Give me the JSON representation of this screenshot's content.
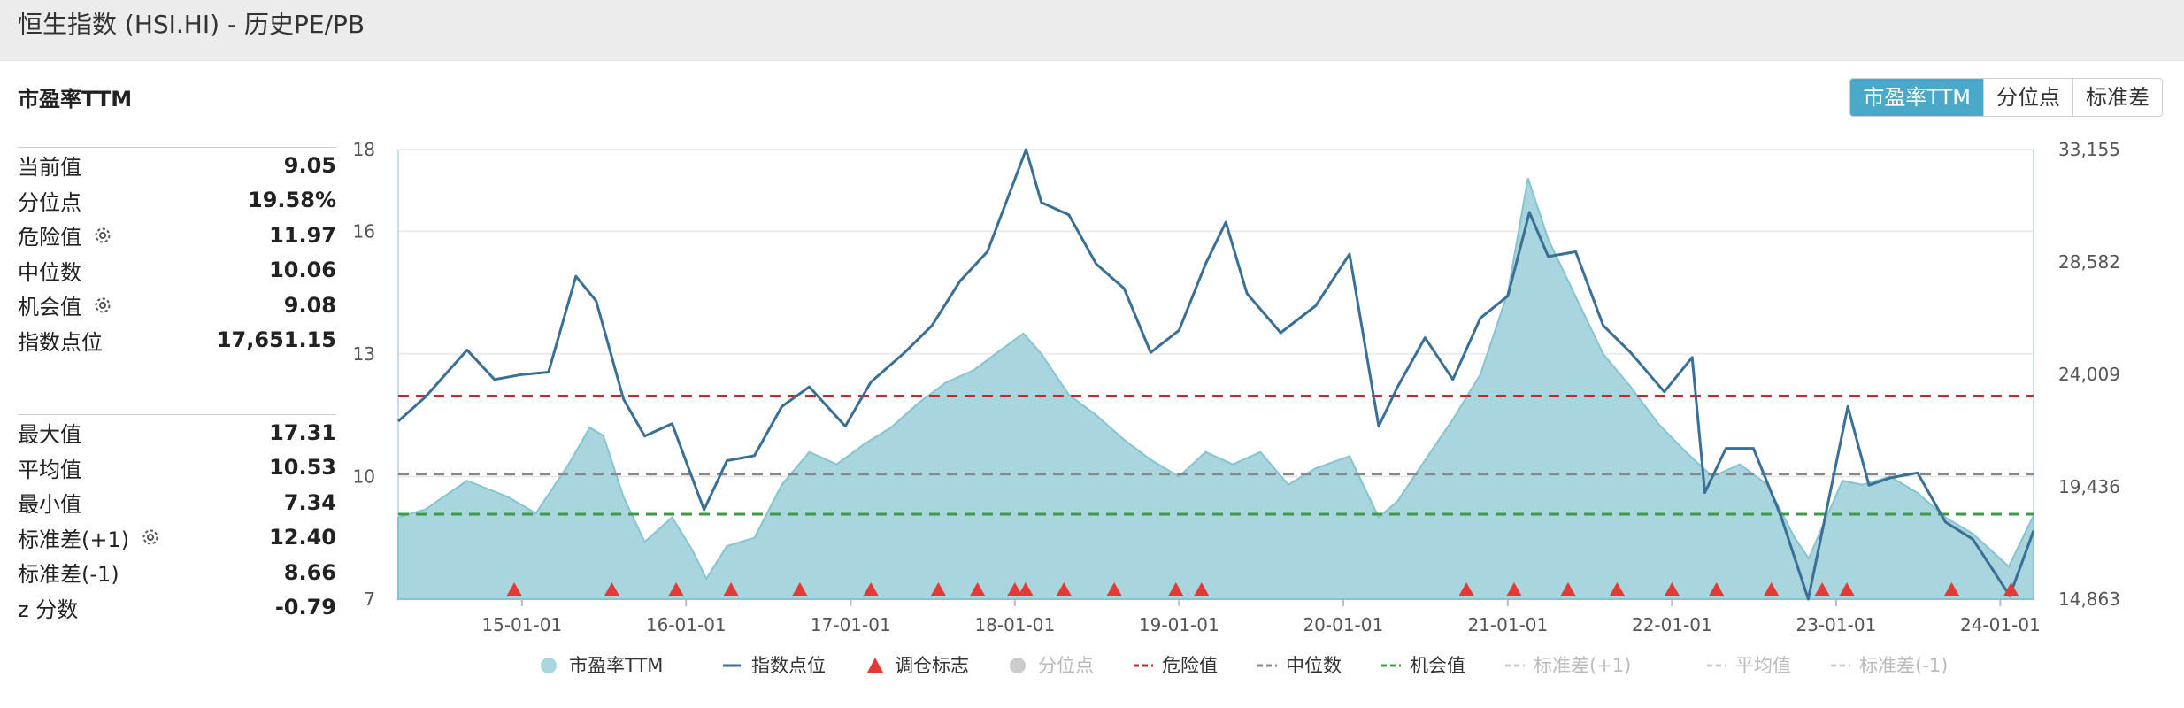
{
  "header": {
    "title": "恒生指数 (HSI.HI) - 历史PE/PB"
  },
  "metric_title": "市盈率TTM",
  "tabs": [
    {
      "label": "市盈率TTM",
      "active": true
    },
    {
      "label": "分位点",
      "active": false
    },
    {
      "label": "标准差",
      "active": false
    }
  ],
  "stats_top": [
    {
      "label": "当前值",
      "value": "9.05",
      "gear": false
    },
    {
      "label": "分位点",
      "value": "19.58%",
      "gear": false
    },
    {
      "label": "危险值",
      "value": "11.97",
      "gear": true
    },
    {
      "label": "中位数",
      "value": "10.06",
      "gear": false
    },
    {
      "label": "机会值",
      "value": "9.08",
      "gear": true
    },
    {
      "label": "指数点位",
      "value": "17,651.15",
      "gear": false
    }
  ],
  "stats_bottom": [
    {
      "label": "最大值",
      "value": "17.31",
      "gear": false
    },
    {
      "label": "平均值",
      "value": "10.53",
      "gear": false
    },
    {
      "label": "最小值",
      "value": "7.34",
      "gear": false
    },
    {
      "label": "标准差(+1)",
      "value": "12.40",
      "gear": true
    },
    {
      "label": "标准差(-1)",
      "value": "8.66",
      "gear": false
    },
    {
      "label": "z 分数",
      "value": "-0.79",
      "gear": false
    }
  ],
  "chart_data": {
    "type": "area",
    "x_start": "2014-04-01",
    "x_end": "2024-03-15",
    "x_ticks": [
      "15-01-01",
      "16-01-01",
      "17-01-01",
      "18-01-01",
      "19-01-01",
      "20-01-01",
      "21-01-01",
      "22-01-01",
      "23-01-01",
      "24-01-01"
    ],
    "y_left": {
      "ticks": [
        7,
        10,
        13,
        16,
        18
      ],
      "range": [
        7,
        18
      ]
    },
    "y_right": {
      "ticks": [
        "14,863",
        "19,436",
        "24,009",
        "28,582",
        "33,155"
      ],
      "range": [
        14863,
        33155
      ]
    },
    "colors": {
      "pe_fill": "#a8d5de",
      "pe_stroke": "#86c4d0",
      "index_line": "#3a6f96",
      "danger": "#c62828",
      "median": "#888888",
      "opportunity": "#3d9a47",
      "marker": "#e53935"
    },
    "reference_lines": [
      {
        "name": "危险值",
        "value": 11.97
      },
      {
        "name": "中位数",
        "value": 10.06
      },
      {
        "name": "机会值",
        "value": 9.08
      }
    ],
    "series": [
      {
        "name": "市盈率TTM",
        "points": [
          [
            "2014-04-01",
            9.0
          ],
          [
            "2014-06-01",
            9.2
          ],
          [
            "2014-09-01",
            9.9
          ],
          [
            "2014-12-01",
            9.5
          ],
          [
            "2015-02-01",
            9.1
          ],
          [
            "2015-04-15",
            10.3
          ],
          [
            "2015-06-01",
            11.2
          ],
          [
            "2015-07-01",
            11.0
          ],
          [
            "2015-08-15",
            9.5
          ],
          [
            "2015-10-01",
            8.4
          ],
          [
            "2015-12-01",
            9.0
          ],
          [
            "2016-01-15",
            8.2
          ],
          [
            "2016-02-15",
            7.5
          ],
          [
            "2016-04-01",
            8.3
          ],
          [
            "2016-06-01",
            8.5
          ],
          [
            "2016-08-01",
            9.8
          ],
          [
            "2016-10-01",
            10.6
          ],
          [
            "2016-12-01",
            10.3
          ],
          [
            "2017-02-01",
            10.8
          ],
          [
            "2017-04-01",
            11.2
          ],
          [
            "2017-06-01",
            11.8
          ],
          [
            "2017-08-01",
            12.3
          ],
          [
            "2017-10-01",
            12.6
          ],
          [
            "2017-12-01",
            13.1
          ],
          [
            "2018-01-20",
            13.5
          ],
          [
            "2018-03-01",
            13.0
          ],
          [
            "2018-05-01",
            12.0
          ],
          [
            "2018-07-01",
            11.5
          ],
          [
            "2018-09-01",
            10.9
          ],
          [
            "2018-11-01",
            10.4
          ],
          [
            "2019-01-01",
            10.0
          ],
          [
            "2019-03-01",
            10.6
          ],
          [
            "2019-05-01",
            10.3
          ],
          [
            "2019-07-01",
            10.6
          ],
          [
            "2019-09-01",
            9.8
          ],
          [
            "2019-11-01",
            10.2
          ],
          [
            "2020-01-15",
            10.5
          ],
          [
            "2020-03-20",
            9.0
          ],
          [
            "2020-05-01",
            9.4
          ],
          [
            "2020-07-01",
            10.4
          ],
          [
            "2020-09-01",
            11.4
          ],
          [
            "2020-11-01",
            12.5
          ],
          [
            "2021-01-01",
            14.5
          ],
          [
            "2021-02-15",
            17.3
          ],
          [
            "2021-04-01",
            15.8
          ],
          [
            "2021-06-01",
            14.4
          ],
          [
            "2021-08-01",
            13.0
          ],
          [
            "2021-10-01",
            12.2
          ],
          [
            "2021-12-01",
            11.3
          ],
          [
            "2022-02-01",
            10.6
          ],
          [
            "2022-04-01",
            10.0
          ],
          [
            "2022-06-01",
            10.3
          ],
          [
            "2022-08-01",
            9.8
          ],
          [
            "2022-10-01",
            8.5
          ],
          [
            "2022-11-01",
            8.0
          ],
          [
            "2023-01-15",
            9.9
          ],
          [
            "2023-03-01",
            9.8
          ],
          [
            "2023-05-01",
            10.0
          ],
          [
            "2023-07-01",
            9.6
          ],
          [
            "2023-09-01",
            9.0
          ],
          [
            "2023-11-01",
            8.6
          ],
          [
            "2024-01-20",
            7.8
          ],
          [
            "2024-03-15",
            9.05
          ]
        ]
      },
      {
        "name": "指数点位",
        "points": [
          [
            "2014-04-01",
            22100
          ],
          [
            "2014-06-01",
            23100
          ],
          [
            "2014-09-01",
            25000
          ],
          [
            "2014-11-01",
            23800
          ],
          [
            "2015-01-01",
            24000
          ],
          [
            "2015-03-01",
            24100
          ],
          [
            "2015-05-01",
            28000
          ],
          [
            "2015-06-15",
            27000
          ],
          [
            "2015-08-15",
            23000
          ],
          [
            "2015-10-01",
            21500
          ],
          [
            "2015-12-01",
            22000
          ],
          [
            "2016-02-10",
            18500
          ],
          [
            "2016-04-01",
            20500
          ],
          [
            "2016-06-01",
            20700
          ],
          [
            "2016-08-01",
            22700
          ],
          [
            "2016-10-01",
            23500
          ],
          [
            "2016-12-20",
            21900
          ],
          [
            "2017-02-15",
            23700
          ],
          [
            "2017-05-01",
            24900
          ],
          [
            "2017-07-01",
            26000
          ],
          [
            "2017-09-01",
            27800
          ],
          [
            "2017-11-01",
            29000
          ],
          [
            "2018-01-26",
            33155
          ],
          [
            "2018-03-01",
            31000
          ],
          [
            "2018-05-01",
            30500
          ],
          [
            "2018-07-01",
            28500
          ],
          [
            "2018-09-01",
            27500
          ],
          [
            "2018-10-30",
            24900
          ],
          [
            "2019-01-01",
            25800
          ],
          [
            "2019-03-01",
            28500
          ],
          [
            "2019-04-15",
            30200
          ],
          [
            "2019-06-01",
            27300
          ],
          [
            "2019-08-15",
            25700
          ],
          [
            "2019-11-01",
            26800
          ],
          [
            "2020-01-15",
            28900
          ],
          [
            "2020-03-20",
            21900
          ],
          [
            "2020-05-01",
            23500
          ],
          [
            "2020-07-01",
            25500
          ],
          [
            "2020-09-01",
            23800
          ],
          [
            "2020-11-01",
            26300
          ],
          [
            "2021-01-01",
            27200
          ],
          [
            "2021-02-18",
            30600
          ],
          [
            "2021-04-01",
            28800
          ],
          [
            "2021-06-01",
            29000
          ],
          [
            "2021-08-01",
            26000
          ],
          [
            "2021-10-01",
            24900
          ],
          [
            "2021-12-15",
            23300
          ],
          [
            "2022-02-15",
            24700
          ],
          [
            "2022-03-15",
            19200
          ],
          [
            "2022-05-01",
            21000
          ],
          [
            "2022-07-01",
            21000
          ],
          [
            "2022-09-01",
            18200
          ],
          [
            "2022-10-31",
            14863
          ],
          [
            "2023-01-27",
            22700
          ],
          [
            "2023-03-15",
            19500
          ],
          [
            "2023-05-01",
            19800
          ],
          [
            "2023-07-01",
            20000
          ],
          [
            "2023-09-01",
            18000
          ],
          [
            "2023-11-01",
            17300
          ],
          [
            "2024-01-22",
            15000
          ],
          [
            "2024-03-15",
            17651
          ]
        ]
      }
    ],
    "rebalance_markers": [
      "2014-12-15",
      "2015-07-20",
      "2015-12-10",
      "2016-04-10",
      "2016-09-10",
      "2017-02-15",
      "2017-07-15",
      "2017-10-10",
      "2018-01-01",
      "2018-01-25",
      "2018-04-20",
      "2018-08-10",
      "2018-12-25",
      "2019-02-20",
      "2020-10-01",
      "2021-01-15",
      "2021-05-15",
      "2021-09-01",
      "2022-01-01",
      "2022-04-10",
      "2022-08-10",
      "2022-12-01",
      "2023-01-25",
      "2023-09-15",
      "2024-01-25"
    ],
    "legend": [
      {
        "name": "市盈率TTM",
        "kind": "dot",
        "color": "#a8d5de",
        "enabled": true
      },
      {
        "name": "指数点位",
        "kind": "line",
        "color": "#3a6f96",
        "enabled": true
      },
      {
        "name": "调仓标志",
        "kind": "triangle",
        "color": "#e53935",
        "enabled": true
      },
      {
        "name": "分位点",
        "kind": "dot",
        "color": "#cccccc",
        "enabled": false
      },
      {
        "name": "危险值",
        "kind": "dash",
        "color": "#c62828",
        "enabled": true
      },
      {
        "name": "中位数",
        "kind": "dash",
        "color": "#888888",
        "enabled": true
      },
      {
        "name": "机会值",
        "kind": "dash",
        "color": "#3d9a47",
        "enabled": true
      },
      {
        "name": "标准差(+1)",
        "kind": "dash",
        "color": "#cccccc",
        "enabled": false
      },
      {
        "name": "平均值",
        "kind": "dash",
        "color": "#cccccc",
        "enabled": false
      },
      {
        "name": "标准差(-1)",
        "kind": "dash",
        "color": "#cccccc",
        "enabled": false
      }
    ]
  }
}
